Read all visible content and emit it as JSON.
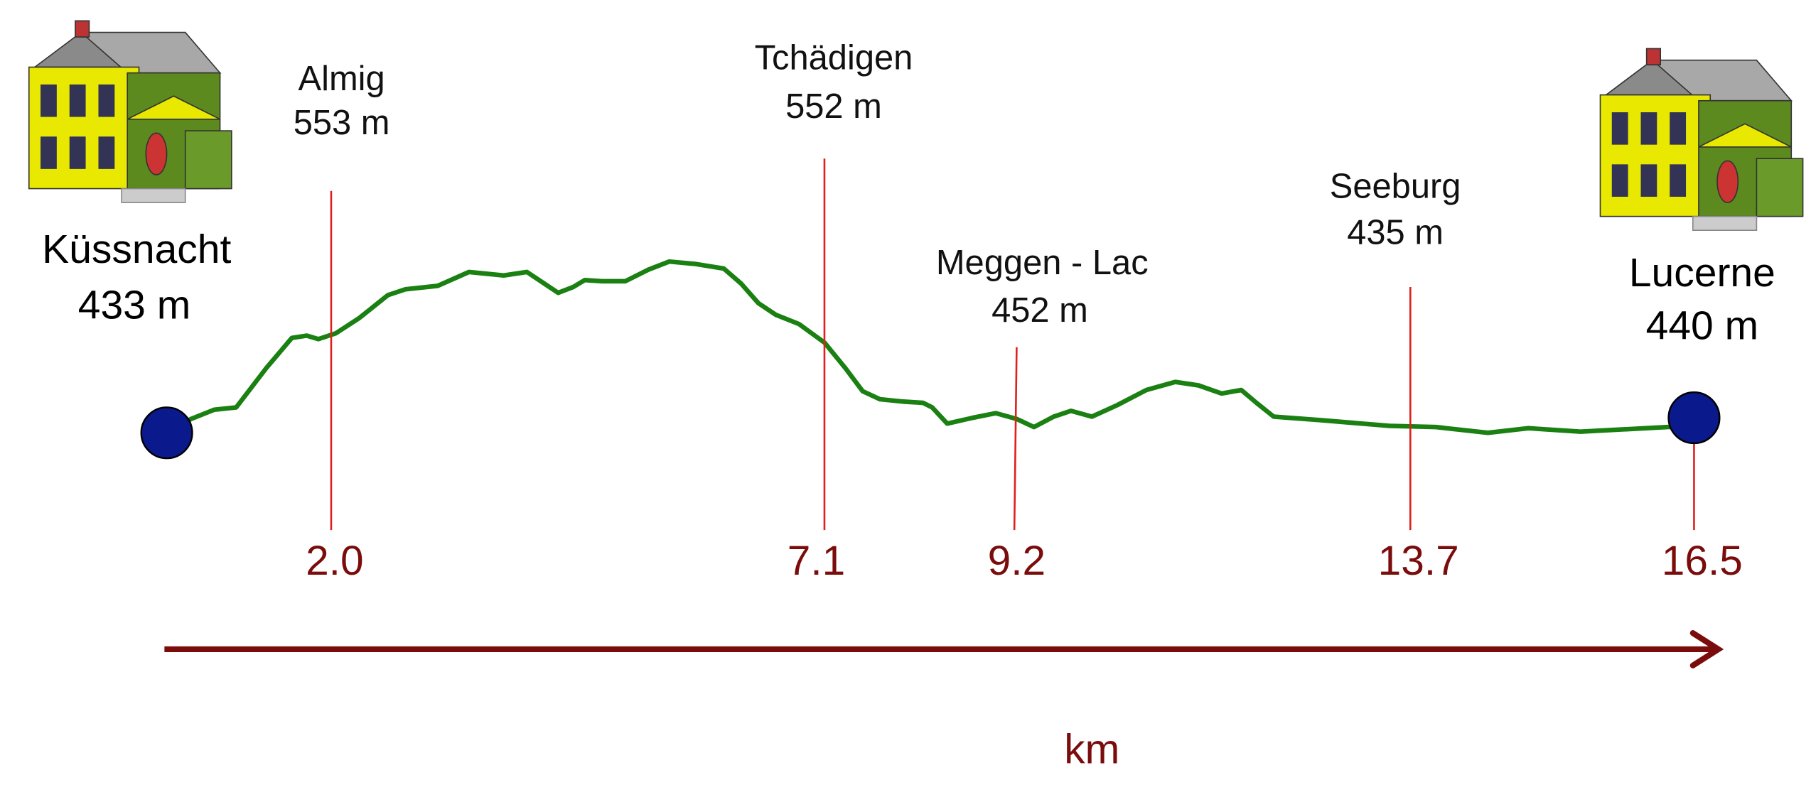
{
  "start": {
    "name": "Küssnacht",
    "elevation": "433 m",
    "km": null
  },
  "end": {
    "name": "Lucerne",
    "elevation": "440 m",
    "km": "16.5"
  },
  "waypoints": [
    {
      "name": "Almig",
      "elevation": "553 m",
      "km": "2.0"
    },
    {
      "name": "Tchädigen",
      "elevation": "552 m",
      "km": "7.1"
    },
    {
      "name": "Meggen - Lac",
      "elevation": "452 m",
      "km": "9.2"
    },
    {
      "name": "Seeburg",
      "elevation": "435 m",
      "km": "13.7"
    }
  ],
  "axis_label": "km"
}
